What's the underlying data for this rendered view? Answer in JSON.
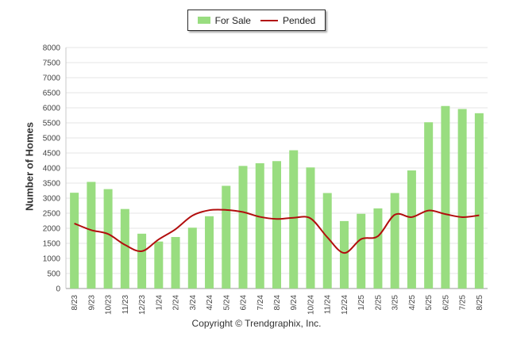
{
  "chart_data": {
    "type": "bar",
    "categories": [
      "8/23",
      "9/23",
      "10/23",
      "11/23",
      "12/23",
      "1/24",
      "2/24",
      "3/24",
      "4/24",
      "5/24",
      "6/24",
      "7/24",
      "8/24",
      "9/24",
      "10/24",
      "11/24",
      "12/24",
      "1/25",
      "2/25",
      "3/25",
      "4/25",
      "5/25",
      "6/25",
      "7/25",
      "8/25"
    ],
    "series": [
      {
        "name": "For Sale",
        "kind": "bar",
        "color": "#99dd80",
        "values": [
          3180,
          3540,
          3300,
          2640,
          1820,
          1560,
          1710,
          2020,
          2400,
          3410,
          4070,
          4160,
          4230,
          4590,
          4020,
          3170,
          2240,
          2480,
          2660,
          3170,
          3920,
          5520,
          6060,
          5960,
          5820
        ]
      },
      {
        "name": "Pended",
        "kind": "line",
        "color": "#b20e0e",
        "values": [
          2160,
          1940,
          1810,
          1450,
          1240,
          1630,
          1970,
          2420,
          2600,
          2610,
          2540,
          2380,
          2310,
          2350,
          2330,
          1700,
          1180,
          1640,
          1740,
          2450,
          2370,
          2590,
          2470,
          2370,
          2430
        ]
      }
    ],
    "ylabel": "Number of Homes",
    "ylim": [
      0,
      8000
    ],
    "yticks": [
      0,
      500,
      1000,
      1500,
      2000,
      2500,
      3000,
      3500,
      4000,
      4500,
      5000,
      5500,
      6000,
      6500,
      7000,
      7500,
      8000
    ],
    "grid": true,
    "legend_position": "top-center"
  },
  "legend": {
    "for_sale": "For Sale",
    "pended": "Pended"
  },
  "footer": {
    "copyright": "Copyright © Trendgraphix, Inc."
  }
}
